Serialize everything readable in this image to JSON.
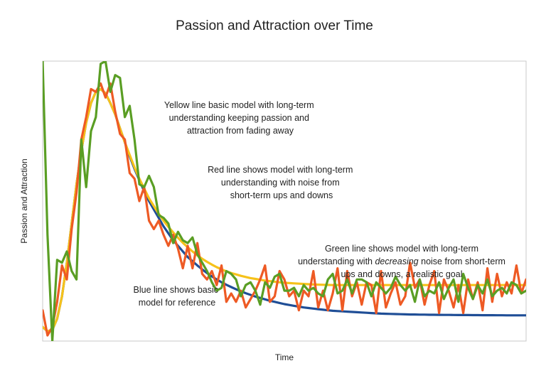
{
  "chart_data": {
    "type": "line",
    "title": "Passion and Attraction over Time",
    "xlabel": "Time",
    "ylabel": "Passion and Attraction",
    "xlim": [
      0,
      100
    ],
    "ylim": [
      0,
      100
    ],
    "grid": false,
    "legend": "none",
    "x": [
      0,
      1,
      2,
      3,
      4,
      5,
      6,
      7,
      8,
      9,
      10,
      11,
      12,
      13,
      14,
      15,
      16,
      17,
      18,
      19,
      20,
      21,
      22,
      23,
      24,
      25,
      26,
      27,
      28,
      29,
      30,
      31,
      32,
      33,
      34,
      35,
      36,
      37,
      38,
      39,
      40,
      41,
      42,
      43,
      44,
      45,
      46,
      47,
      48,
      49,
      50,
      51,
      52,
      53,
      54,
      55,
      56,
      57,
      58,
      59,
      60,
      61,
      62,
      63,
      64,
      65,
      66,
      67,
      68,
      69,
      70,
      71,
      72,
      73,
      74,
      75,
      76,
      77,
      78,
      79,
      80,
      81,
      82,
      83,
      84,
      85,
      86,
      87,
      88,
      89,
      90,
      91,
      92,
      93,
      94,
      95,
      96,
      97,
      98,
      99,
      100
    ],
    "series": [
      {
        "name": "Blue",
        "color": "#1f4e96",
        "values": [
          5,
          3.5,
          4,
          8,
          16,
          28,
          42,
          56,
          68,
          78,
          85,
          89,
          90,
          88.5,
          85,
          81,
          76,
          71,
          66,
          61.5,
          57.5,
          53.5,
          50,
          47,
          44,
          41,
          38.5,
          36,
          34,
          32,
          30,
          28.5,
          27,
          25.6,
          24.3,
          23.1,
          22,
          21,
          20.1,
          19.3,
          18.5,
          17.8,
          17.1,
          16.5,
          15.9,
          15.4,
          14.9,
          14.4,
          14,
          13.6,
          13.2,
          12.9,
          12.6,
          12.3,
          12,
          11.8,
          11.6,
          11.4,
          11.2,
          11,
          10.8,
          10.7,
          10.6,
          10.5,
          10.4,
          10.3,
          10.2,
          10.1,
          10,
          9.9,
          9.8,
          9.75,
          9.7,
          9.65,
          9.6,
          9.55,
          9.5,
          9.48,
          9.45,
          9.43,
          9.4,
          9.38,
          9.36,
          9.35,
          9.33,
          9.32,
          9.3,
          9.29,
          9.28,
          9.27,
          9.26,
          9.25,
          9.24,
          9.23,
          9.22,
          9.21,
          9.2,
          9.2,
          9.2,
          9.2,
          9.2
        ]
      },
      {
        "name": "Yellow",
        "color": "#f6c21a",
        "values": [
          5,
          3.5,
          4,
          8,
          16,
          28,
          42,
          56,
          68,
          78,
          85,
          89,
          90,
          88.5,
          85,
          81,
          76,
          71,
          66.5,
          62,
          58,
          54.5,
          51,
          48.2,
          45.5,
          43,
          40.8,
          38.8,
          36.9,
          35.1,
          33.5,
          32,
          30.6,
          29.4,
          28.3,
          27.3,
          26.4,
          25.6,
          24.9,
          24.3,
          23.8,
          23.3,
          22.9,
          22.5,
          22.2,
          21.9,
          21.6,
          21.4,
          21.2,
          21,
          20.8,
          20.7,
          20.6,
          20.5,
          20.4,
          20.3,
          20.2,
          20.15,
          20.1,
          20.05,
          20,
          20,
          20,
          20,
          20,
          20,
          20,
          20,
          20,
          20,
          20,
          20,
          20,
          20,
          20,
          20,
          20,
          20,
          20,
          20,
          20,
          20,
          20,
          20,
          20,
          20,
          20,
          20,
          20,
          20,
          20,
          20,
          20,
          20,
          20,
          20,
          20,
          20,
          20,
          20,
          20
        ]
      },
      {
        "name": "Red",
        "color": "#ee5a24",
        "values": [
          11,
          2,
          5,
          14,
          27,
          22,
          40,
          53,
          72,
          80,
          90,
          89,
          92,
          87,
          92,
          82,
          74,
          72,
          60,
          58,
          50,
          55,
          43,
          40,
          43,
          38,
          34,
          38,
          33,
          26,
          34,
          26,
          35,
          24,
          22,
          25,
          20,
          27,
          14,
          17,
          14,
          18,
          12,
          15,
          18,
          22,
          27,
          14,
          16,
          25,
          22,
          16,
          18,
          11,
          18,
          16,
          25,
          12,
          18,
          11,
          17,
          26,
          11,
          25,
          16,
          21,
          13,
          21,
          20,
          10,
          25,
          12,
          17,
          21,
          13,
          16,
          28,
          19,
          22,
          13,
          20,
          25,
          10,
          22,
          18,
          12,
          20,
          10,
          22,
          15,
          21,
          11,
          26,
          14,
          24,
          16,
          21,
          17,
          27,
          17,
          22
        ]
      },
      {
        "name": "Green",
        "color": "#5a9e24",
        "values": [
          100,
          38,
          0,
          29,
          28,
          32,
          25,
          22,
          72,
          55,
          75,
          80,
          99,
          100,
          89,
          95,
          94,
          80,
          84,
          72,
          56,
          55,
          59,
          55,
          45,
          44,
          42,
          35,
          39,
          36,
          35,
          37,
          31,
          28,
          25,
          21,
          18,
          19,
          25,
          24,
          22,
          16,
          20,
          21,
          18,
          13,
          21,
          19,
          23,
          24,
          18,
          18,
          19,
          16,
          20,
          18,
          19,
          17,
          16,
          22,
          24,
          17,
          18,
          22,
          17,
          22,
          22,
          21,
          16,
          21,
          19,
          17,
          19,
          23,
          20,
          18,
          20,
          14,
          22,
          16,
          18,
          17,
          21,
          15,
          19,
          22,
          14,
          24,
          19,
          15,
          20,
          17,
          22,
          16,
          18,
          19,
          17,
          21,
          20,
          17,
          18
        ]
      }
    ],
    "annotations": [
      {
        "name": "yellow-note",
        "lines": [
          "Yellow line basic model with long-term",
          "understanding keeping passion and",
          "attraction from fading away"
        ]
      },
      {
        "name": "red-note",
        "lines": [
          "Red line shows model with long-term",
          "understanding with noise from",
          "short-term ups and downs"
        ]
      },
      {
        "name": "green-note",
        "lines": [
          "Green line shows model with long-term",
          "understanding with ",
          "decreasing",
          " noise from short-term",
          "ups and downs, a realistic goal"
        ]
      },
      {
        "name": "blue-note",
        "lines": [
          "Blue line shows basic",
          "model for reference"
        ]
      }
    ]
  }
}
